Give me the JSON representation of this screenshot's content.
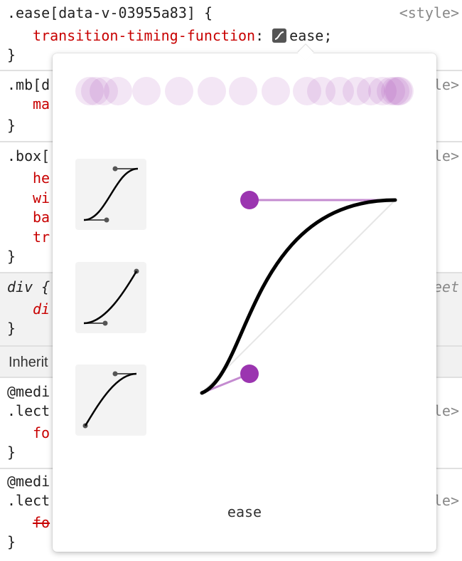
{
  "rules": [
    {
      "selector": ".ease[data-v-03955a83] {",
      "source": "<style>",
      "decl_prop": "transition-timing-function",
      "decl_sep": ":",
      "decl_value": "ease;",
      "close": "}"
    },
    {
      "selector": ".mb[d",
      "source": "le>",
      "decl_prop": "ma",
      "close": "}"
    },
    {
      "selector": ".box[",
      "source": "le>",
      "decl_props": [
        "he",
        "wi",
        "ba",
        "tr"
      ],
      "close": "}"
    },
    {
      "selector": "div {",
      "source": "eet",
      "decl_prop": "di",
      "close": "}"
    },
    {
      "inherited_label": "Inherit"
    },
    {
      "media": "@medi",
      "selector": ".lect",
      "source": "le>",
      "decl_prop": "fo",
      "close": "}"
    },
    {
      "media": "@medi",
      "selector": ".lect",
      "source": "le>",
      "decl_prop": "fo",
      "close": "}"
    }
  ],
  "editor": {
    "curve_name": "ease",
    "presets": [
      "ease-in-out",
      "ease-in",
      "ease-out"
    ],
    "bezier": [
      0.25,
      0.1,
      0.25,
      1.0
    ],
    "colors": {
      "accent": "#9b35b0",
      "handle_line": "#c48bd0",
      "preview_dot": "#efe0f3",
      "curve": "#000000"
    }
  }
}
